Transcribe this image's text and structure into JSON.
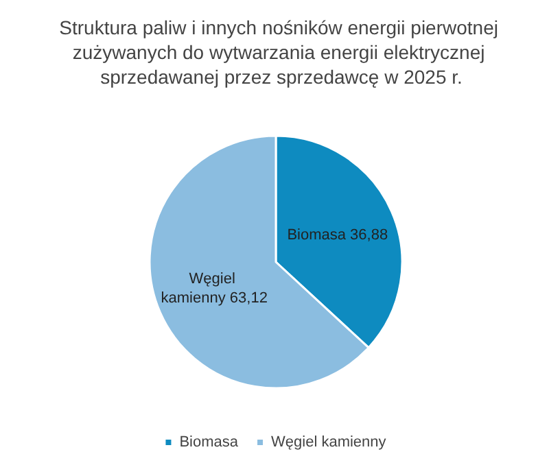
{
  "chart_data": {
    "type": "pie",
    "title": "Struktura paliw i innych nośników energii pierwotnej zużywanych do wytwarzania energii elektrycznej sprzedawanej przez sprzedawcę w 2025 r.",
    "categories": [
      "Biomasa",
      "Węgiel kamienny"
    ],
    "values": [
      36.88,
      63.12
    ],
    "value_labels": [
      "Biomasa 36,88",
      "Węgiel kamienny 63,12"
    ],
    "colors": [
      "#0e8bc0",
      "#8bbde0"
    ],
    "legend": "bottom"
  }
}
